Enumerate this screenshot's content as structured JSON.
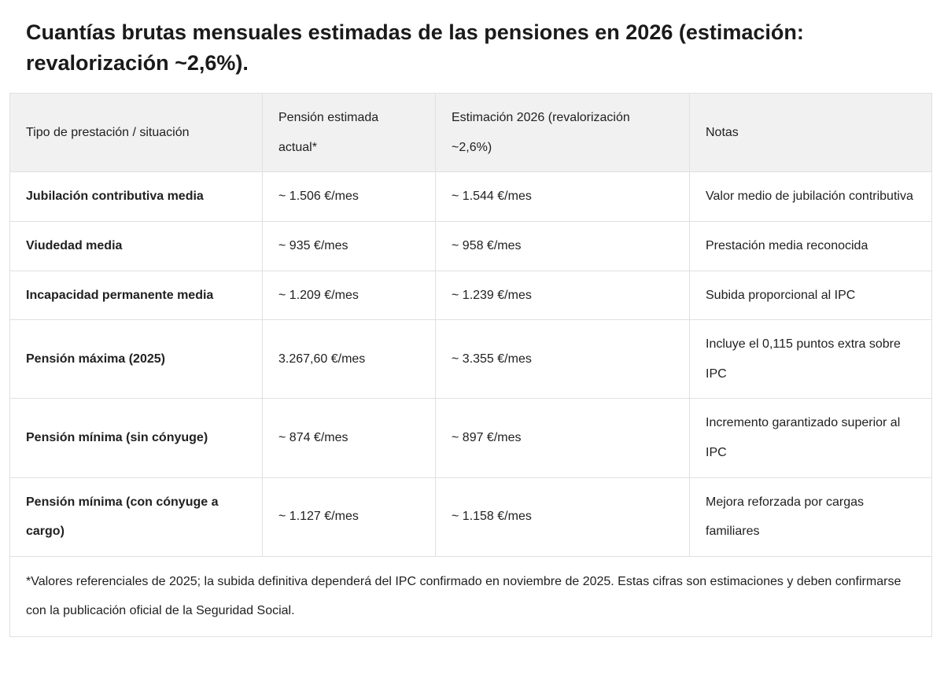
{
  "title": "Cuantías brutas mensuales estimadas de las pensiones en 2026 (estimación: revalorización ~2,6%).",
  "colors": {
    "header_bg": "#f1f1f2",
    "border": "#e0e0e1",
    "title_text": "#1a1a1a",
    "body_text": "#202122"
  },
  "table": {
    "headers": {
      "tipo": "Tipo de prestación / situación",
      "actual": "Pensión estimada actual*",
      "estimacion": "Estimación 2026 (revalorización ~2,6%)",
      "notas": "Notas"
    },
    "rows": [
      {
        "tipo": "Jubilación contributiva media",
        "actual": "~ 1.506 €/mes",
        "estimacion": "~ 1.544 €/mes",
        "notas": "Valor medio de jubilación contributiva"
      },
      {
        "tipo": "Viudedad media",
        "actual": "~ 935 €/mes",
        "estimacion": "~ 958 €/mes",
        "notas": "Prestación media reconocida"
      },
      {
        "tipo": "Incapacidad permanente media",
        "actual": "~ 1.209 €/mes",
        "estimacion": "~ 1.239 €/mes",
        "notas": "Subida proporcional al IPC"
      },
      {
        "tipo": "Pensión máxima (2025)",
        "actual": "3.267,60 €/mes",
        "estimacion": "~ 3.355 €/mes",
        "notas": "Incluye el 0,115 puntos extra sobre IPC"
      },
      {
        "tipo": "Pensión mínima (sin cónyuge)",
        "actual": "~ 874 €/mes",
        "estimacion": "~ 897 €/mes",
        "notas": "Incremento garantizado superior al IPC"
      },
      {
        "tipo": "Pensión mínima (con cónyuge a cargo)",
        "actual": "~ 1.127 €/mes",
        "estimacion": "~ 1.158 €/mes",
        "notas": "Mejora reforzada por cargas familiares"
      }
    ],
    "footnote": "*Valores referenciales de 2025; la subida definitiva dependerá del IPC confirmado en noviembre de 2025. Estas cifras son estimaciones y deben confirmarse con la publicación oficial de la Seguridad Social."
  }
}
